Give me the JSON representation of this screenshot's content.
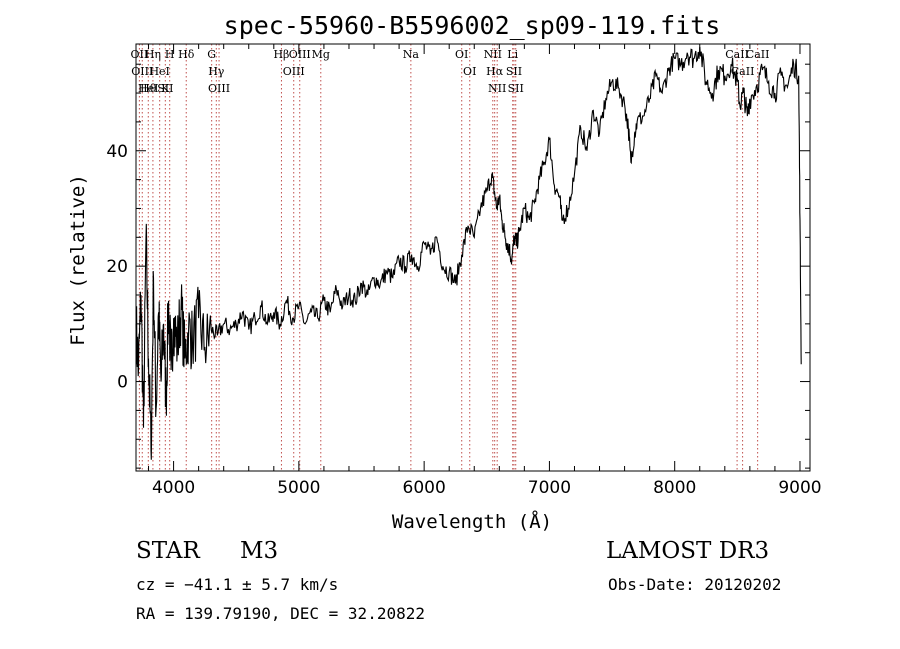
{
  "chart_data": {
    "type": "line",
    "title": "spec-55960-B5596002_sp09-119.fits",
    "xlabel": "Wavelength (Å)",
    "ylabel": "Flux (relative)",
    "xlim": [
      3700,
      9080
    ],
    "ylim": [
      -15.5,
      58.5
    ],
    "xticks": [
      4000,
      5000,
      6000,
      7000,
      8000,
      9000
    ],
    "yticks": [
      0,
      20,
      40
    ],
    "grid": false,
    "series": [
      {
        "name": "flux",
        "x": [
          3700,
          3720,
          3740,
          3760,
          3780,
          3800,
          3820,
          3840,
          3860,
          3880,
          3900,
          3920,
          3940,
          3960,
          3980,
          4000,
          4030,
          4060,
          4090,
          4120,
          4150,
          4200,
          4250,
          4300,
          4350,
          4400,
          4450,
          4500,
          4550,
          4600,
          4650,
          4700,
          4750,
          4800,
          4850,
          4900,
          4950,
          5000,
          5050,
          5100,
          5150,
          5200,
          5250,
          5300,
          5350,
          5400,
          5450,
          5500,
          5550,
          5600,
          5650,
          5700,
          5750,
          5800,
          5850,
          5900,
          5950,
          6000,
          6050,
          6100,
          6150,
          6200,
          6250,
          6300,
          6350,
          6400,
          6450,
          6500,
          6540,
          6560,
          6580,
          6600,
          6620,
          6640,
          6660,
          6680,
          6700,
          6720,
          6740,
          6760,
          6800,
          6840,
          6880,
          6920,
          6960,
          7000,
          7040,
          7080,
          7100,
          7150,
          7200,
          7250,
          7300,
          7350,
          7400,
          7450,
          7500,
          7550,
          7600,
          7630,
          7650,
          7680,
          7700,
          7750,
          7800,
          7850,
          7900,
          7950,
          8000,
          8050,
          8100,
          8150,
          8200,
          8250,
          8300,
          8350,
          8400,
          8450,
          8500,
          8520,
          8550,
          8580,
          8600,
          8650,
          8700,
          8750,
          8800,
          8850,
          8900,
          8950,
          8990,
          9000,
          9010
        ],
        "y": [
          10,
          2,
          15,
          -8,
          25,
          4,
          -12,
          18,
          -5,
          12,
          0,
          10,
          -3,
          14,
          2,
          11,
          6,
          13,
          4,
          9,
          7,
          11,
          6,
          9,
          8,
          10,
          9,
          10,
          12,
          9,
          11,
          13,
          10,
          12,
          10,
          14,
          11,
          13,
          10,
          12,
          11,
          14,
          12,
          16,
          13,
          15,
          14,
          17,
          15,
          18,
          17,
          19,
          18,
          21,
          20,
          22,
          20,
          24,
          22,
          25,
          20,
          19,
          17,
          22,
          27,
          25,
          30,
          33,
          36,
          33,
          30,
          32,
          28,
          26,
          24,
          23,
          21,
          25,
          24,
          26,
          30,
          28,
          31,
          35,
          38,
          42,
          34,
          32,
          28,
          30,
          36,
          44,
          40,
          47,
          43,
          49,
          52,
          51,
          48,
          44,
          38,
          43,
          45,
          46,
          49,
          53,
          50,
          54,
          56,
          55,
          57,
          56,
          58,
          52,
          50,
          54,
          53,
          55,
          52,
          48,
          50,
          46,
          49,
          51,
          54,
          52,
          50,
          53,
          51,
          55,
          53,
          28,
          3
        ]
      }
    ],
    "line_markers": [
      {
        "x": 3727,
        "labels": [
          "OII"
        ]
      },
      {
        "x": 3750,
        "labels": [
          "OIII"
        ]
      },
      {
        "x": 3798,
        "labels": [
          "Hθ",
          "HeI"
        ]
      },
      {
        "x": 3835,
        "labels": [
          "Hη"
        ]
      },
      {
        "x": 3889,
        "labels": [
          "HeI"
        ]
      },
      {
        "x": 3934,
        "labels": [
          "K",
          "SII"
        ]
      },
      {
        "x": 3969,
        "labels": [
          "H"
        ]
      },
      {
        "x": 4101,
        "labels": [
          "Hδ"
        ]
      },
      {
        "x": 4304,
        "labels": [
          "G"
        ]
      },
      {
        "x": 4341,
        "labels": [
          "Hγ"
        ]
      },
      {
        "x": 4363,
        "labels": [
          "OIII"
        ]
      },
      {
        "x": 4861,
        "labels": [
          "Hβ"
        ]
      },
      {
        "x": 4959,
        "labels": [
          "OIII"
        ]
      },
      {
        "x": 5007,
        "labels": [
          "OIII"
        ]
      },
      {
        "x": 5175,
        "labels": [
          "Mg"
        ]
      },
      {
        "x": 5894,
        "labels": [
          "Na"
        ]
      },
      {
        "x": 6300,
        "labels": [
          "OI"
        ]
      },
      {
        "x": 6364,
        "labels": [
          "OI"
        ]
      },
      {
        "x": 6548,
        "labels": [
          "NII"
        ]
      },
      {
        "x": 6563,
        "labels": [
          "Hα"
        ]
      },
      {
        "x": 6583,
        "labels": [
          "NII"
        ]
      },
      {
        "x": 6707,
        "labels": [
          "Li"
        ]
      },
      {
        "x": 6717,
        "labels": [
          "SII"
        ]
      },
      {
        "x": 6731,
        "labels": [
          "SII"
        ]
      },
      {
        "x": 8498,
        "labels": [
          "CaII"
        ]
      },
      {
        "x": 8542,
        "labels": [
          "CaII"
        ]
      },
      {
        "x": 8662,
        "labels": [
          "CaII"
        ]
      }
    ]
  },
  "info": {
    "class": "STAR",
    "subclass": "M3",
    "cz": "cz = −41.1 ± 5.7 km/s",
    "coords": "RA = 139.79190, DEC =  32.20822",
    "survey": "LAMOST DR3",
    "obs_date": "Obs-Date: 20120202"
  },
  "colors": {
    "line": "#000000",
    "marker": "#c0504d",
    "axis": "#000000"
  }
}
